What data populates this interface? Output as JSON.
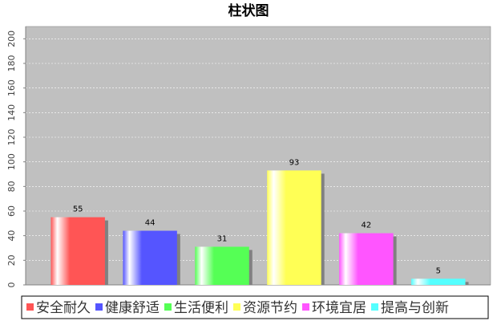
{
  "chart_data": {
    "type": "bar",
    "title": "柱状图",
    "series": [
      {
        "name": "安全耐久",
        "color": "#ff5555",
        "values": [
          55
        ]
      },
      {
        "name": "健康舒适",
        "color": "#5555ff",
        "values": [
          44
        ]
      },
      {
        "name": "生活便利",
        "color": "#55ff55",
        "values": [
          31
        ]
      },
      {
        "name": "资源节约",
        "color": "#ffff55",
        "values": [
          93
        ]
      },
      {
        "name": "环境宜居",
        "color": "#ff55ff",
        "values": [
          42
        ]
      },
      {
        "name": "提高与创新",
        "color": "#55ffff",
        "values": [
          5
        ]
      }
    ],
    "ylim": [
      0,
      210
    ],
    "yticks": [
      0,
      20,
      40,
      60,
      80,
      100,
      120,
      140,
      160,
      180,
      200
    ],
    "grid": true,
    "legend": "bottom"
  }
}
